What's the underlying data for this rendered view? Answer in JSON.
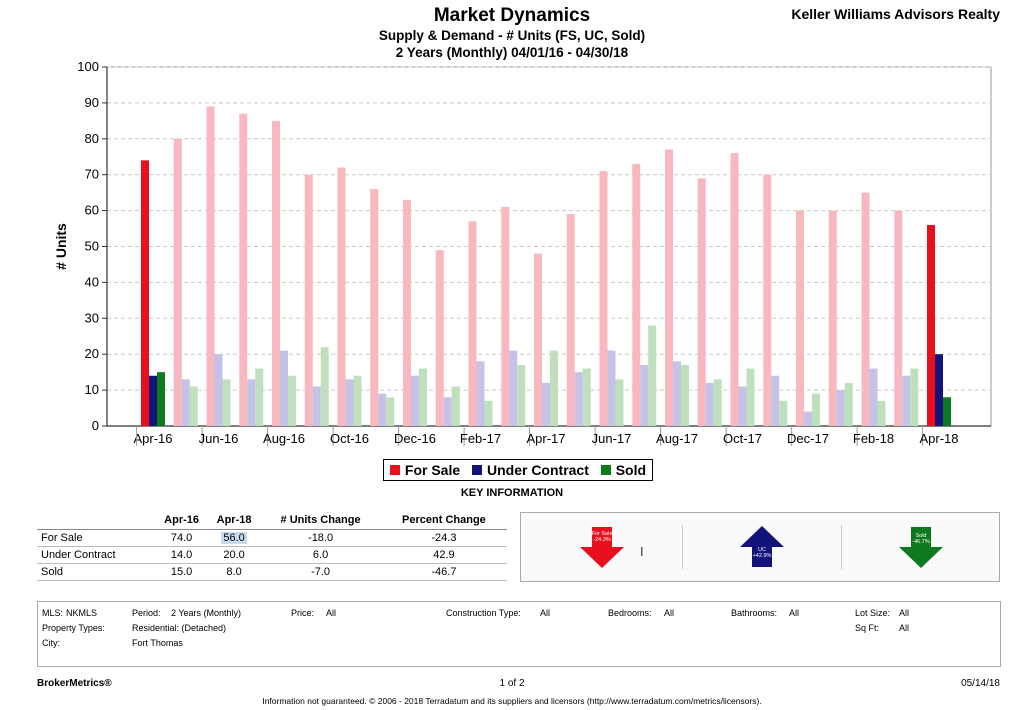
{
  "header": {
    "title": "Market Dynamics",
    "brand": "Keller Williams Advisors Realty",
    "subtitle": "Supply & Demand - # Units (FS, UC, Sold)",
    "date_range": "2 Years (Monthly) 04/01/16 - 04/30/18"
  },
  "colors": {
    "for_sale_current": "#e8101d",
    "for_sale_muted": "#f7b8c0",
    "under_contract_current": "#13137a",
    "under_contract_muted": "#c4c2e6",
    "sold_current": "#0d7a1d",
    "sold_muted": "#bfe0bd"
  },
  "chart_data": {
    "type": "bar",
    "title": "Market Dynamics",
    "ylabel": "# Units",
    "xlabel": "",
    "ylim": [
      0,
      100
    ],
    "yticks": [
      0,
      10,
      20,
      30,
      40,
      50,
      60,
      70,
      80,
      90,
      100
    ],
    "grid": true,
    "categories": [
      "Apr-16",
      "May-16",
      "Jun-16",
      "Jul-16",
      "Aug-16",
      "Sep-16",
      "Oct-16",
      "Nov-16",
      "Dec-16",
      "Jan-17",
      "Feb-17",
      "Mar-17",
      "Apr-17",
      "May-17",
      "Jun-17",
      "Jul-17",
      "Aug-17",
      "Sep-17",
      "Oct-17",
      "Nov-17",
      "Dec-17",
      "Jan-18",
      "Feb-18",
      "Mar-18",
      "Apr-18"
    ],
    "xtick_labels": [
      "Apr-16",
      "Jun-16",
      "Aug-16",
      "Oct-16",
      "Dec-16",
      "Feb-17",
      "Apr-17",
      "Jun-17",
      "Aug-17",
      "Oct-17",
      "Dec-17",
      "Feb-18",
      "Apr-18"
    ],
    "highlighted_indices": [
      0,
      24
    ],
    "series": [
      {
        "name": "For Sale",
        "values": [
          74,
          80,
          89,
          87,
          85,
          70,
          72,
          66,
          63,
          49,
          57,
          61,
          48,
          59,
          71,
          73,
          77,
          69,
          76,
          70,
          60,
          60,
          65,
          60,
          56
        ]
      },
      {
        "name": "Under Contract",
        "values": [
          14,
          13,
          20,
          13,
          21,
          11,
          13,
          9,
          14,
          8,
          18,
          21,
          12,
          15,
          21,
          17,
          18,
          12,
          11,
          14,
          4,
          10,
          16,
          14,
          20
        ]
      },
      {
        "name": "Sold",
        "values": [
          15,
          11,
          13,
          16,
          14,
          22,
          14,
          8,
          16,
          11,
          7,
          17,
          21,
          16,
          13,
          28,
          17,
          13,
          16,
          7,
          9,
          12,
          7,
          16,
          8
        ]
      }
    ]
  },
  "legend": {
    "items": [
      "For Sale",
      "Under Contract",
      "Sold"
    ],
    "caption": "KEY INFORMATION"
  },
  "key_table": {
    "headers": [
      "",
      "Apr-16",
      "Apr-18",
      "# Units Change",
      "Percent Change"
    ],
    "rows": [
      {
        "label": "For Sale",
        "a": "74.0",
        "b": "56.0",
        "change": "-18.0",
        "pct": "-24.3"
      },
      {
        "label": "Under Contract",
        "a": "14.0",
        "b": "20.0",
        "change": "6.0",
        "pct": "42.9"
      },
      {
        "label": "Sold",
        "a": "15.0",
        "b": "8.0",
        "change": "-7.0",
        "pct": "-46.7"
      }
    ]
  },
  "arrows": [
    {
      "label": "For Sale",
      "value": "-24.3%",
      "direction": "down",
      "color": "#e8101d"
    },
    {
      "label": "UC",
      "value": "+42.9%",
      "direction": "up",
      "color": "#13137a"
    },
    {
      "label": "Sold",
      "value": "-46.7%",
      "direction": "down",
      "color": "#0d7a1d"
    }
  ],
  "filters": {
    "mls_label": "MLS:",
    "mls_value": "NKMLS",
    "period_label": "Period:",
    "period_value": "2 Years (Monthly)",
    "price_label": "Price:",
    "price_value": "All",
    "construction_label": "Construction Type:",
    "construction_value": "All",
    "bedrooms_label": "Bedrooms:",
    "bedrooms_value": "All",
    "bathrooms_label": "Bathrooms:",
    "bathrooms_value": "All",
    "lotsize_label": "Lot Size:",
    "lotsize_value": "All",
    "proptype_label": "Property Types:",
    "proptype_value": "Residential: (Detached)",
    "sqft_label": "Sq Ft:",
    "sqft_value": "All",
    "city_label": "City:",
    "city_value": "Fort Thomas"
  },
  "footer": {
    "left": "BrokerMetrics®",
    "page": "1 of 2",
    "date": "05/14/18",
    "disclaimer": "Information not guaranteed.  © 2006 - 2018 Terradatum and its suppliers and licensors (http://www.terradatum.com/metrics/licensors)."
  }
}
